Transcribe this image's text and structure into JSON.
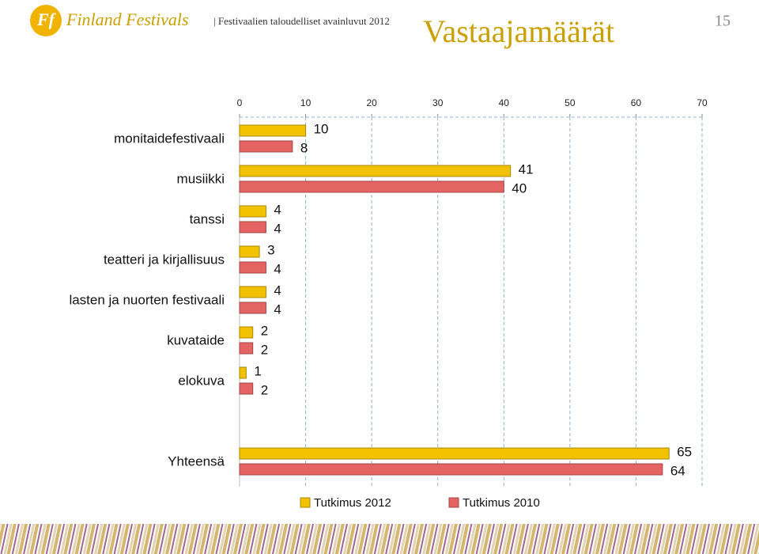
{
  "header": {
    "logo_mark": "Ff",
    "brand": "Finland Festivals",
    "subtitle": "| Festivaalien taloudelliset avainluvut 2012",
    "title": "Vastaajamäärät",
    "page_number": "15"
  },
  "chart_data": {
    "type": "bar",
    "orientation": "horizontal",
    "categories": [
      "monitaidefestivaali",
      "musiikki",
      "tanssi",
      "teatteri ja kirjallisuus",
      "lasten ja nuorten festivaali",
      "kuvataide",
      "elokuva",
      null,
      "Yhteensä"
    ],
    "series": [
      {
        "name": "Tutkimus 2012",
        "color": "#f2c200",
        "values": [
          10,
          41,
          4,
          3,
          4,
          2,
          1,
          null,
          65
        ]
      },
      {
        "name": "Tutkimus 2010",
        "color": "#e46464",
        "values": [
          8,
          40,
          4,
          4,
          4,
          2,
          2,
          null,
          64
        ]
      }
    ],
    "xlim": [
      0,
      70
    ],
    "xticks": [
      0,
      10,
      20,
      30,
      40,
      50,
      60,
      70
    ],
    "grid": true,
    "legend": "bottom"
  }
}
